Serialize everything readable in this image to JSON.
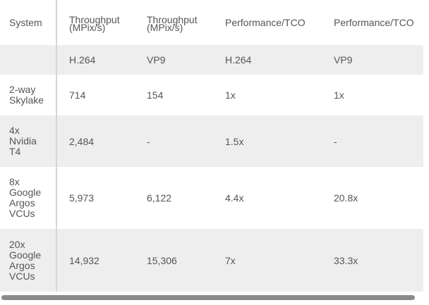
{
  "table": {
    "headers": [
      "System",
      "Throughput (MPix/s)",
      "Throughput (MPix/s)",
      "Performance/TCO",
      "Performance/TCO"
    ],
    "codecs": [
      "",
      "H.264",
      "VP9",
      "H.264",
      "VP9"
    ],
    "rows": [
      [
        "2-way Skylake",
        "714",
        "154",
        "1x",
        "1x"
      ],
      [
        "4x Nvidia T4",
        "2,484",
        "-",
        "1.5x",
        "-"
      ],
      [
        "8x Google Argos VCUs",
        "5,973",
        "6,122",
        "4.4x",
        "20.8x"
      ],
      [
        "20x Google Argos VCUs",
        "14,932",
        "15,306",
        "7x",
        "33.3x"
      ]
    ]
  }
}
